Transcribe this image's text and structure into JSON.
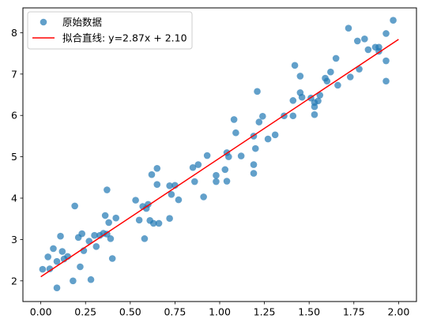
{
  "chart_data": {
    "type": "scatter",
    "title": "",
    "xlabel": "",
    "ylabel": "",
    "xlim": [
      -0.1,
      2.1
    ],
    "ylim": [
      1.5,
      8.6
    ],
    "xticks": [
      0.0,
      0.25,
      0.5,
      0.75,
      1.0,
      1.25,
      1.5,
      1.75,
      2.0
    ],
    "xtick_labels": [
      "0.00",
      "0.25",
      "0.50",
      "0.75",
      "1.00",
      "1.25",
      "1.50",
      "1.75",
      "2.00"
    ],
    "yticks": [
      2,
      3,
      4,
      5,
      6,
      7,
      8
    ],
    "ytick_labels": [
      "2",
      "3",
      "4",
      "5",
      "6",
      "7",
      "8"
    ],
    "grid": false,
    "legend_position": "top-left",
    "series": [
      {
        "name": "原始数据",
        "kind": "scatter",
        "color": "#1f77b4",
        "points": [
          [
            0.01,
            2.28
          ],
          [
            0.04,
            2.58
          ],
          [
            0.05,
            2.29
          ],
          [
            0.07,
            2.78
          ],
          [
            0.09,
            1.83
          ],
          [
            0.09,
            2.47
          ],
          [
            0.11,
            3.08
          ],
          [
            0.12,
            2.71
          ],
          [
            0.13,
            2.53
          ],
          [
            0.15,
            2.59
          ],
          [
            0.18,
            2.0
          ],
          [
            0.19,
            3.81
          ],
          [
            0.21,
            3.05
          ],
          [
            0.22,
            2.34
          ],
          [
            0.23,
            3.14
          ],
          [
            0.24,
            2.73
          ],
          [
            0.27,
            2.96
          ],
          [
            0.28,
            2.03
          ],
          [
            0.3,
            3.1
          ],
          [
            0.31,
            2.83
          ],
          [
            0.33,
            3.1
          ],
          [
            0.35,
            3.15
          ],
          [
            0.36,
            3.58
          ],
          [
            0.37,
            4.2
          ],
          [
            0.38,
            3.41
          ],
          [
            0.39,
            3.02
          ],
          [
            0.4,
            2.54
          ],
          [
            0.42,
            3.52
          ],
          [
            0.37,
            3.13
          ],
          [
            0.53,
            3.95
          ],
          [
            0.55,
            3.47
          ],
          [
            0.57,
            3.8
          ],
          [
            0.58,
            3.02
          ],
          [
            0.59,
            3.75
          ],
          [
            0.6,
            3.85
          ],
          [
            0.61,
            3.46
          ],
          [
            0.62,
            4.57
          ],
          [
            0.63,
            3.39
          ],
          [
            0.65,
            4.33
          ],
          [
            0.65,
            4.72
          ],
          [
            0.66,
            3.39
          ],
          [
            0.72,
            3.51
          ],
          [
            0.72,
            4.3
          ],
          [
            0.73,
            4.09
          ],
          [
            0.75,
            4.31
          ],
          [
            0.77,
            3.96
          ],
          [
            0.85,
            4.74
          ],
          [
            0.86,
            4.4
          ],
          [
            0.88,
            4.81
          ],
          [
            0.91,
            4.03
          ],
          [
            0.93,
            5.03
          ],
          [
            0.98,
            4.4
          ],
          [
            0.98,
            4.55
          ],
          [
            1.03,
            4.69
          ],
          [
            1.04,
            4.41
          ],
          [
            1.04,
            5.1
          ],
          [
            1.05,
            5.0
          ],
          [
            1.08,
            5.9
          ],
          [
            1.09,
            5.58
          ],
          [
            1.12,
            5.02
          ],
          [
            1.19,
            4.6
          ],
          [
            1.19,
            4.81
          ],
          [
            1.19,
            5.5
          ],
          [
            1.2,
            5.2
          ],
          [
            1.21,
            6.58
          ],
          [
            1.22,
            5.84
          ],
          [
            1.24,
            5.98
          ],
          [
            1.27,
            5.43
          ],
          [
            1.31,
            5.53
          ],
          [
            1.36,
            5.99
          ],
          [
            1.41,
            5.99
          ],
          [
            1.41,
            6.36
          ],
          [
            1.42,
            7.21
          ],
          [
            1.45,
            6.95
          ],
          [
            1.45,
            6.55
          ],
          [
            1.46,
            6.44
          ],
          [
            1.51,
            6.42
          ],
          [
            1.53,
            6.02
          ],
          [
            1.53,
            6.21
          ],
          [
            1.53,
            6.31
          ],
          [
            1.55,
            6.35
          ],
          [
            1.56,
            6.49
          ],
          [
            1.59,
            6.9
          ],
          [
            1.6,
            6.83
          ],
          [
            1.62,
            7.05
          ],
          [
            1.65,
            7.38
          ],
          [
            1.66,
            6.73
          ],
          [
            1.72,
            8.11
          ],
          [
            1.73,
            6.93
          ],
          [
            1.77,
            7.8
          ],
          [
            1.78,
            7.12
          ],
          [
            1.81,
            7.85
          ],
          [
            1.83,
            7.59
          ],
          [
            1.87,
            7.65
          ],
          [
            1.89,
            7.55
          ],
          [
            1.89,
            7.65
          ],
          [
            1.93,
            7.98
          ],
          [
            1.93,
            6.83
          ],
          [
            1.93,
            7.32
          ],
          [
            1.97,
            8.3
          ]
        ]
      },
      {
        "name": "拟合直线: y=2.87x + 2.10",
        "kind": "line",
        "color": "#ff0000",
        "slope": 2.87,
        "intercept": 2.1,
        "x_range": [
          0.0,
          2.0
        ]
      }
    ]
  }
}
